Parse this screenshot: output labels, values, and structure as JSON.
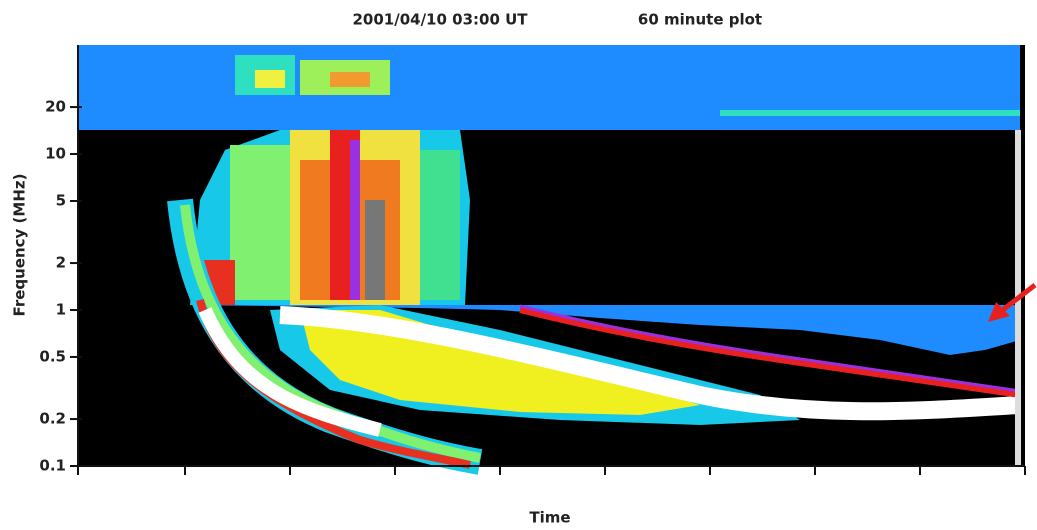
{
  "chart_data": {
    "type": "spectrogram",
    "title": "2001/04/10 03:00 UT",
    "subtitle": "60 minute plot",
    "y_label": "Frequency (MHz)",
    "x_label": "Time",
    "ylim": [
      0.1,
      50
    ],
    "yticks": [
      0.1,
      0.2,
      0.5,
      1,
      2,
      5,
      10,
      20
    ],
    "log_scale": true
  }
}
